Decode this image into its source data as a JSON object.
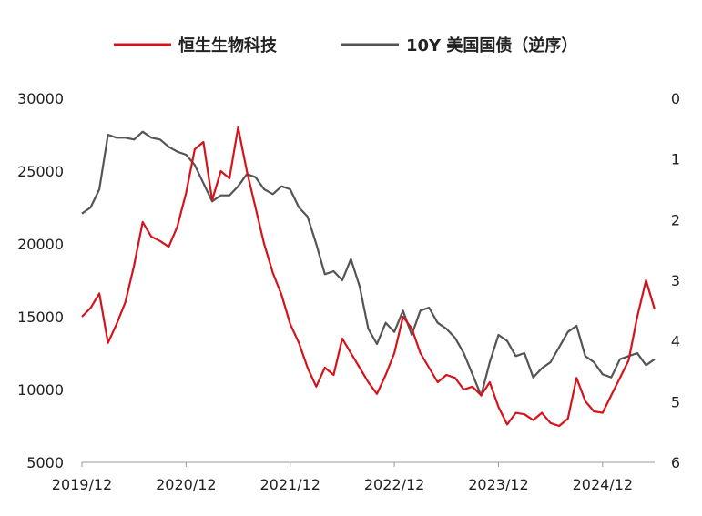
{
  "chart_data": {
    "type": "line",
    "title": "",
    "legend_position": "top-center",
    "grid": false,
    "colors": {
      "hs_biotech": "#d4141c",
      "us10y": "#555555"
    },
    "legend": [
      "恒生生物科技",
      "10Y 美国国债（逆序）"
    ],
    "x_ticks": [
      "2019/12",
      "2020/12",
      "2021/12",
      "2022/12",
      "2023/12",
      "2024/12"
    ],
    "y_left_ticks": [
      "30000",
      "25000",
      "20000",
      "15000",
      "10000",
      "5000"
    ],
    "y_right_ticks": [
      "0",
      "1",
      "2",
      "3",
      "4",
      "5",
      "6"
    ],
    "y_left_range": [
      5000,
      30000
    ],
    "y_right_range_inverted": [
      0,
      6
    ],
    "x_range": [
      "2019-12",
      "2025-06"
    ],
    "series": [
      {
        "name": "恒生生物科技",
        "axis": "left",
        "points": [
          [
            "2019-12",
            15000
          ],
          [
            "2020-01",
            15600
          ],
          [
            "2020-02",
            16600
          ],
          [
            "2020-03",
            13200
          ],
          [
            "2020-04",
            14500
          ],
          [
            "2020-05",
            16000
          ],
          [
            "2020-06",
            18500
          ],
          [
            "2020-07",
            21500
          ],
          [
            "2020-08",
            20500
          ],
          [
            "2020-09",
            20200
          ],
          [
            "2020-10",
            19800
          ],
          [
            "2020-11",
            21200
          ],
          [
            "2020-12",
            23500
          ],
          [
            "2021-01",
            26500
          ],
          [
            "2021-02",
            27000
          ],
          [
            "2021-03",
            23000
          ],
          [
            "2021-04",
            25000
          ],
          [
            "2021-05",
            24500
          ],
          [
            "2021-06",
            28000
          ],
          [
            "2021-07",
            25000
          ],
          [
            "2021-08",
            22500
          ],
          [
            "2021-09",
            20000
          ],
          [
            "2021-10",
            18000
          ],
          [
            "2021-11",
            16500
          ],
          [
            "2021-12",
            14500
          ],
          [
            "2022-01",
            13200
          ],
          [
            "2022-02",
            11500
          ],
          [
            "2022-03",
            10200
          ],
          [
            "2022-04",
            11500
          ],
          [
            "2022-05",
            11000
          ],
          [
            "2022-06",
            13500
          ],
          [
            "2022-07",
            12500
          ],
          [
            "2022-08",
            11500
          ],
          [
            "2022-09",
            10500
          ],
          [
            "2022-10",
            9700
          ],
          [
            "2022-11",
            11000
          ],
          [
            "2022-12",
            12500
          ],
          [
            "2023-01",
            15000
          ],
          [
            "2023-02",
            14200
          ],
          [
            "2023-03",
            12500
          ],
          [
            "2023-04",
            11500
          ],
          [
            "2023-05",
            10500
          ],
          [
            "2023-06",
            11000
          ],
          [
            "2023-07",
            10800
          ],
          [
            "2023-08",
            10000
          ],
          [
            "2023-09",
            10200
          ],
          [
            "2023-10",
            9600
          ],
          [
            "2023-11",
            10500
          ],
          [
            "2023-12",
            8800
          ],
          [
            "2024-01",
            7600
          ],
          [
            "2024-02",
            8400
          ],
          [
            "2024-03",
            8300
          ],
          [
            "2024-04",
            7900
          ],
          [
            "2024-05",
            8400
          ],
          [
            "2024-06",
            7700
          ],
          [
            "2024-07",
            7500
          ],
          [
            "2024-08",
            8000
          ],
          [
            "2024-09",
            10800
          ],
          [
            "2024-10",
            9200
          ],
          [
            "2024-11",
            8500
          ],
          [
            "2024-12",
            8400
          ],
          [
            "2025-01",
            9600
          ],
          [
            "2025-02",
            10800
          ],
          [
            "2025-03",
            12000
          ],
          [
            "2025-04",
            15000
          ],
          [
            "2025-05",
            17500
          ],
          [
            "2025-06",
            15500
          ]
        ]
      },
      {
        "name": "10Y 美国国债（逆序）",
        "axis": "right",
        "points": [
          [
            "2019-12",
            1.9
          ],
          [
            "2020-01",
            1.8
          ],
          [
            "2020-02",
            1.5
          ],
          [
            "2020-03",
            0.6
          ],
          [
            "2020-04",
            0.65
          ],
          [
            "2020-05",
            0.65
          ],
          [
            "2020-06",
            0.68
          ],
          [
            "2020-07",
            0.55
          ],
          [
            "2020-08",
            0.65
          ],
          [
            "2020-09",
            0.68
          ],
          [
            "2020-10",
            0.8
          ],
          [
            "2020-11",
            0.88
          ],
          [
            "2020-12",
            0.93
          ],
          [
            "2021-01",
            1.1
          ],
          [
            "2021-02",
            1.4
          ],
          [
            "2021-03",
            1.7
          ],
          [
            "2021-04",
            1.6
          ],
          [
            "2021-05",
            1.6
          ],
          [
            "2021-06",
            1.45
          ],
          [
            "2021-07",
            1.25
          ],
          [
            "2021-08",
            1.3
          ],
          [
            "2021-09",
            1.5
          ],
          [
            "2021-10",
            1.58
          ],
          [
            "2021-11",
            1.45
          ],
          [
            "2021-12",
            1.5
          ],
          [
            "2022-01",
            1.8
          ],
          [
            "2022-02",
            1.95
          ],
          [
            "2022-03",
            2.4
          ],
          [
            "2022-04",
            2.9
          ],
          [
            "2022-05",
            2.85
          ],
          [
            "2022-06",
            3.0
          ],
          [
            "2022-07",
            2.65
          ],
          [
            "2022-08",
            3.1
          ],
          [
            "2022-09",
            3.8
          ],
          [
            "2022-10",
            4.05
          ],
          [
            "2022-11",
            3.7
          ],
          [
            "2022-12",
            3.85
          ],
          [
            "2023-01",
            3.5
          ],
          [
            "2023-02",
            3.9
          ],
          [
            "2023-03",
            3.5
          ],
          [
            "2023-04",
            3.45
          ],
          [
            "2023-05",
            3.7
          ],
          [
            "2023-06",
            3.8
          ],
          [
            "2023-07",
            3.95
          ],
          [
            "2023-08",
            4.2
          ],
          [
            "2023-09",
            4.55
          ],
          [
            "2023-10",
            4.9
          ],
          [
            "2023-11",
            4.35
          ],
          [
            "2023-12",
            3.9
          ],
          [
            "2024-01",
            4.0
          ],
          [
            "2024-02",
            4.25
          ],
          [
            "2024-03",
            4.2
          ],
          [
            "2024-04",
            4.6
          ],
          [
            "2024-05",
            4.45
          ],
          [
            "2024-06",
            4.35
          ],
          [
            "2024-07",
            4.1
          ],
          [
            "2024-08",
            3.85
          ],
          [
            "2024-09",
            3.75
          ],
          [
            "2024-10",
            4.25
          ],
          [
            "2024-11",
            4.35
          ],
          [
            "2024-12",
            4.55
          ],
          [
            "2025-01",
            4.6
          ],
          [
            "2025-02",
            4.3
          ],
          [
            "2025-03",
            4.25
          ],
          [
            "2025-04",
            4.2
          ],
          [
            "2025-05",
            4.4
          ],
          [
            "2025-06",
            4.3
          ]
        ]
      }
    ]
  }
}
